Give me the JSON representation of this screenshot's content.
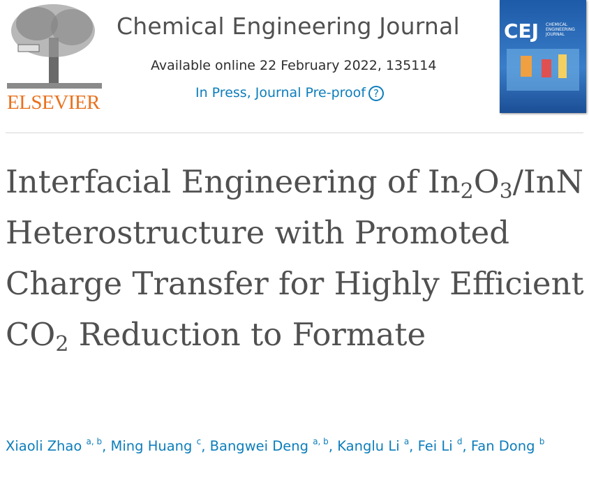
{
  "header": {
    "publisher": "ELSEVIER",
    "journal": "Chemical Engineering Journal",
    "availability": "Available online 22 February 2022, 135114",
    "status": "In Press, Journal Pre-proof",
    "help_icon": "?",
    "cover": {
      "acronym": "CEJ",
      "name": "CHEMICAL ENGINEERING JOURNAL"
    }
  },
  "article": {
    "title_parts": [
      {
        "text": "Interfacial Engineering of In"
      },
      {
        "text": "2",
        "sub": true
      },
      {
        "text": "O"
      },
      {
        "text": "3",
        "sub": true
      },
      {
        "text": "/InN Heterostructure with Promoted Charge Transfer for Highly Efficient CO"
      },
      {
        "text": "2",
        "sub": true
      },
      {
        "text": " Reduction to Formate"
      }
    ],
    "author_separator": ", ",
    "authors": [
      {
        "name": "Xiaoli Zhao",
        "affiliations": "a, b"
      },
      {
        "name": "Ming Huang",
        "affiliations": "c"
      },
      {
        "name": "Bangwei Deng",
        "affiliations": "a, b"
      },
      {
        "name": "Kanglu Li",
        "affiliations": "a"
      },
      {
        "name": "Fei Li",
        "affiliations": "d"
      },
      {
        "name": "Fan Dong",
        "affiliations": "b"
      }
    ]
  }
}
